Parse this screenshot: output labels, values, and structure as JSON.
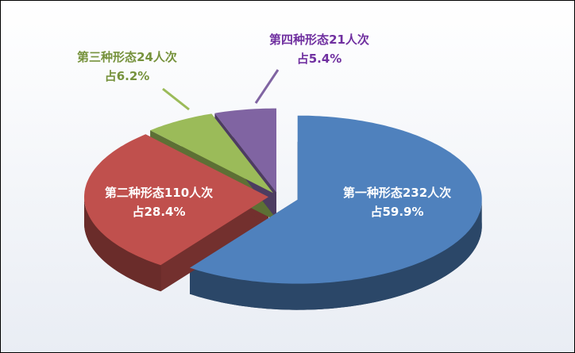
{
  "chart_data": {
    "type": "pie3d",
    "categories": [
      "第一种形态",
      "第二种形态",
      "第三种形态",
      "第四种形态"
    ],
    "values": [
      232,
      110,
      24,
      21
    ],
    "value_labels": [
      "232人次",
      "110人次",
      "24人次",
      "21人次"
    ],
    "percents": [
      59.9,
      28.4,
      6.2,
      5.4
    ],
    "percent_labels": [
      "占59.9%",
      "占28.4%",
      "占6.2%",
      "占5.4%"
    ],
    "colors": [
      "#4f81bd",
      "#c0504d",
      "#9bbb59",
      "#8064a2"
    ]
  }
}
